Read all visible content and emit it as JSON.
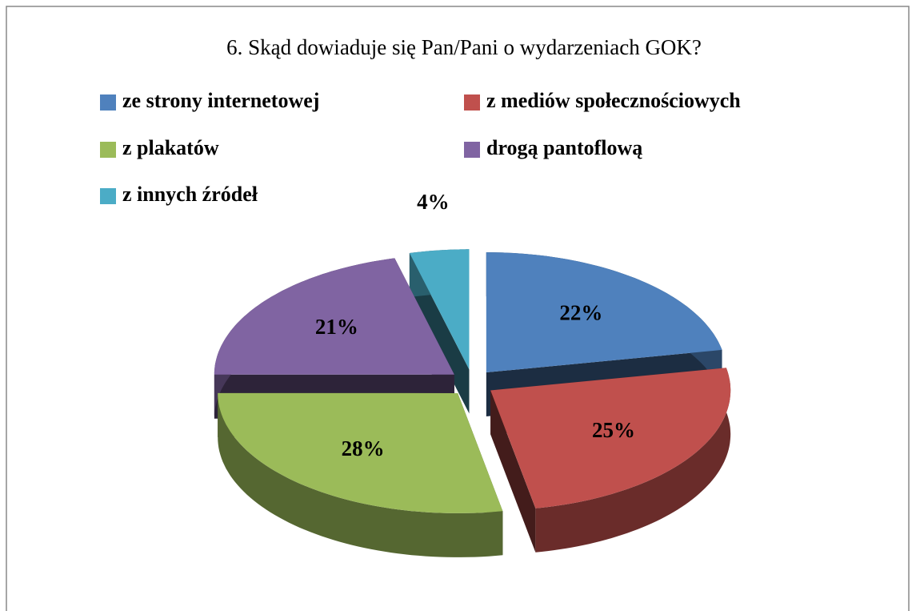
{
  "chart_data": {
    "type": "pie3d",
    "title": "6. Skąd dowiaduje się Pan/Pani o wydarzeniach GOK?",
    "categories": [
      "ze strony internetowej",
      "z mediów społecznościowych",
      "z plakatów",
      "drogą pantoflową",
      "z innych źródeł"
    ],
    "values": [
      22,
      25,
      28,
      21,
      4
    ],
    "value_labels": [
      "22%",
      "25%",
      "28%",
      "21%",
      "4%"
    ],
    "colors": [
      "#4f81bd",
      "#c0504d",
      "#9bbb59",
      "#8064a2",
      "#4bacc6"
    ],
    "exploded": true
  }
}
